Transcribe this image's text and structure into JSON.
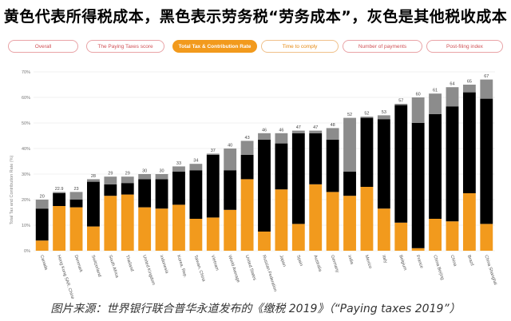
{
  "headline": "黄色代表所得税成本，黑色表示劳务税“劳务成本”，灰色是其他税收成本",
  "tabs": [
    "Overall",
    "The Paying Taxes score",
    "Total Tax & Contribution Rate",
    "Time to comply",
    "Number of payments",
    "Post-filing index"
  ],
  "active_tab": "Total Tax & Contribution Rate",
  "caption": "图片来源：世界银行联合普华永道发布的《缴税 2019》（“Paying taxes 2019”）",
  "colors": {
    "profit": "#f29a1d",
    "labour": "#000000",
    "other": "#8c8c8c",
    "accent": "#f29a1d"
  },
  "chart_data": {
    "type": "bar",
    "stacked": true,
    "ylabel": "Total Tax and Contribution Rate (%)",
    "ylim": [
      0,
      70
    ],
    "yticks": [
      "0%",
      "10%",
      "20%",
      "30%",
      "40%",
      "50%",
      "60%",
      "70%"
    ],
    "categories": [
      "Canada",
      "Hong Kong SAR, China",
      "Denmark",
      "Switzerland",
      "South Africa",
      "Thailand",
      "United Kingdom",
      "Indonesia",
      "Korea, Rep.",
      "Taiwan, China",
      "Vietnam",
      "World Average",
      "United States",
      "Russian Federation",
      "Japan",
      "Spain",
      "Australia",
      "Germany",
      "India",
      "Mexico",
      "Italy",
      "Belgium",
      "France",
      "China Beijing",
      "China",
      "Brazil",
      "China Shanghai"
    ],
    "totals": [
      "20",
      "22.9",
      "23",
      "28",
      "29",
      "29",
      "30",
      "30",
      "33",
      "34",
      "37",
      "40",
      "43",
      "46",
      "46",
      "47",
      "47",
      "48",
      "52",
      "52",
      "53",
      "57",
      "60",
      "61",
      "64",
      "65",
      "67"
    ],
    "series": [
      {
        "name": "Profit tax",
        "values": [
          4,
          17.5,
          17,
          9.5,
          21.5,
          22,
          17,
          16.5,
          18,
          12.5,
          13,
          16,
          28,
          7.5,
          24,
          10.5,
          26,
          23,
          21.5,
          25,
          16.5,
          11,
          1,
          12.5,
          11.5,
          22.5,
          10.5
        ]
      },
      {
        "name": "Labour tax and contributions",
        "values": [
          12.5,
          5,
          3,
          17.5,
          4.5,
          4.5,
          11,
          11.5,
          13,
          19,
          24.5,
          15.5,
          9.5,
          36,
          18,
          35.5,
          20,
          20.5,
          9.5,
          27,
          35,
          46,
          49,
          41,
          45,
          39.5,
          49
        ]
      },
      {
        "name": "Other taxes",
        "values": [
          3.5,
          0.5,
          3,
          1,
          3,
          2.5,
          2,
          2,
          2,
          2.5,
          0.5,
          8.5,
          5.5,
          2.5,
          4,
          1,
          1,
          4.5,
          21,
          0.5,
          1.5,
          0.5,
          10,
          8,
          7.5,
          3,
          7.5
        ]
      }
    ]
  }
}
